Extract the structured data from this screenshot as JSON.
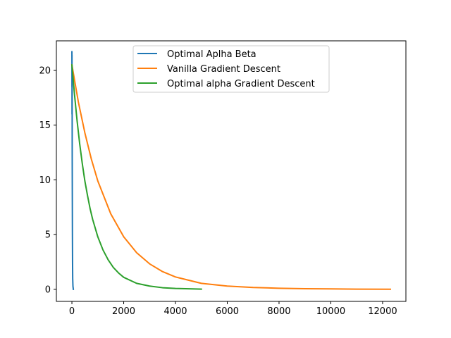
{
  "chart_data": {
    "type": "line",
    "title": "",
    "xlabel": "",
    "ylabel": "",
    "xlim": [
      -600,
      12900
    ],
    "ylim": [
      -1.1,
      22.7
    ],
    "xticks": [
      0,
      2000,
      4000,
      6000,
      8000,
      10000,
      12000
    ],
    "yticks": [
      0,
      5,
      10,
      15,
      20
    ],
    "xtick_labels": [
      "0",
      "2000",
      "4000",
      "6000",
      "8000",
      "10000",
      "12000"
    ],
    "ytick_labels": [
      "0",
      "5",
      "10",
      "15",
      "20"
    ],
    "grid": false,
    "legend_position": "upper-center",
    "series": [
      {
        "name": "Optimal Aplha Beta",
        "color": "#1f77b4",
        "x": [
          0,
          1,
          2,
          3,
          5,
          8,
          12,
          16,
          20,
          25,
          30,
          40,
          50,
          55
        ],
        "y": [
          21.7,
          20.8,
          18.5,
          21.4,
          16.0,
          19.2,
          12.0,
          8.5,
          5.0,
          2.5,
          1.0,
          0.3,
          0.1,
          0.0
        ]
      },
      {
        "name": "Vanilla Gradient Descent",
        "color": "#ff7f0e",
        "x": [
          0,
          250,
          500,
          750,
          1000,
          1500,
          2000,
          2500,
          3000,
          3500,
          4000,
          5000,
          6000,
          7000,
          8000,
          9000,
          10000,
          11000,
          12300
        ],
        "y": [
          20.5,
          17.1,
          14.3,
          11.9,
          9.9,
          6.9,
          4.8,
          3.35,
          2.33,
          1.62,
          1.13,
          0.55,
          0.3,
          0.17,
          0.1,
          0.06,
          0.04,
          0.02,
          0.01
        ]
      },
      {
        "name": "Optimal alpha Gradient Descent",
        "color": "#2ca02c",
        "x": [
          0,
          100,
          200,
          300,
          400,
          500,
          600,
          700,
          800,
          1000,
          1200,
          1400,
          1600,
          1800,
          2000,
          2500,
          3000,
          3500,
          4000,
          5000
        ],
        "y": [
          20.5,
          17.8,
          15.4,
          13.3,
          11.5,
          9.9,
          8.6,
          7.4,
          6.4,
          4.8,
          3.6,
          2.7,
          2.0,
          1.5,
          1.1,
          0.55,
          0.3,
          0.15,
          0.08,
          0.02
        ]
      }
    ]
  }
}
